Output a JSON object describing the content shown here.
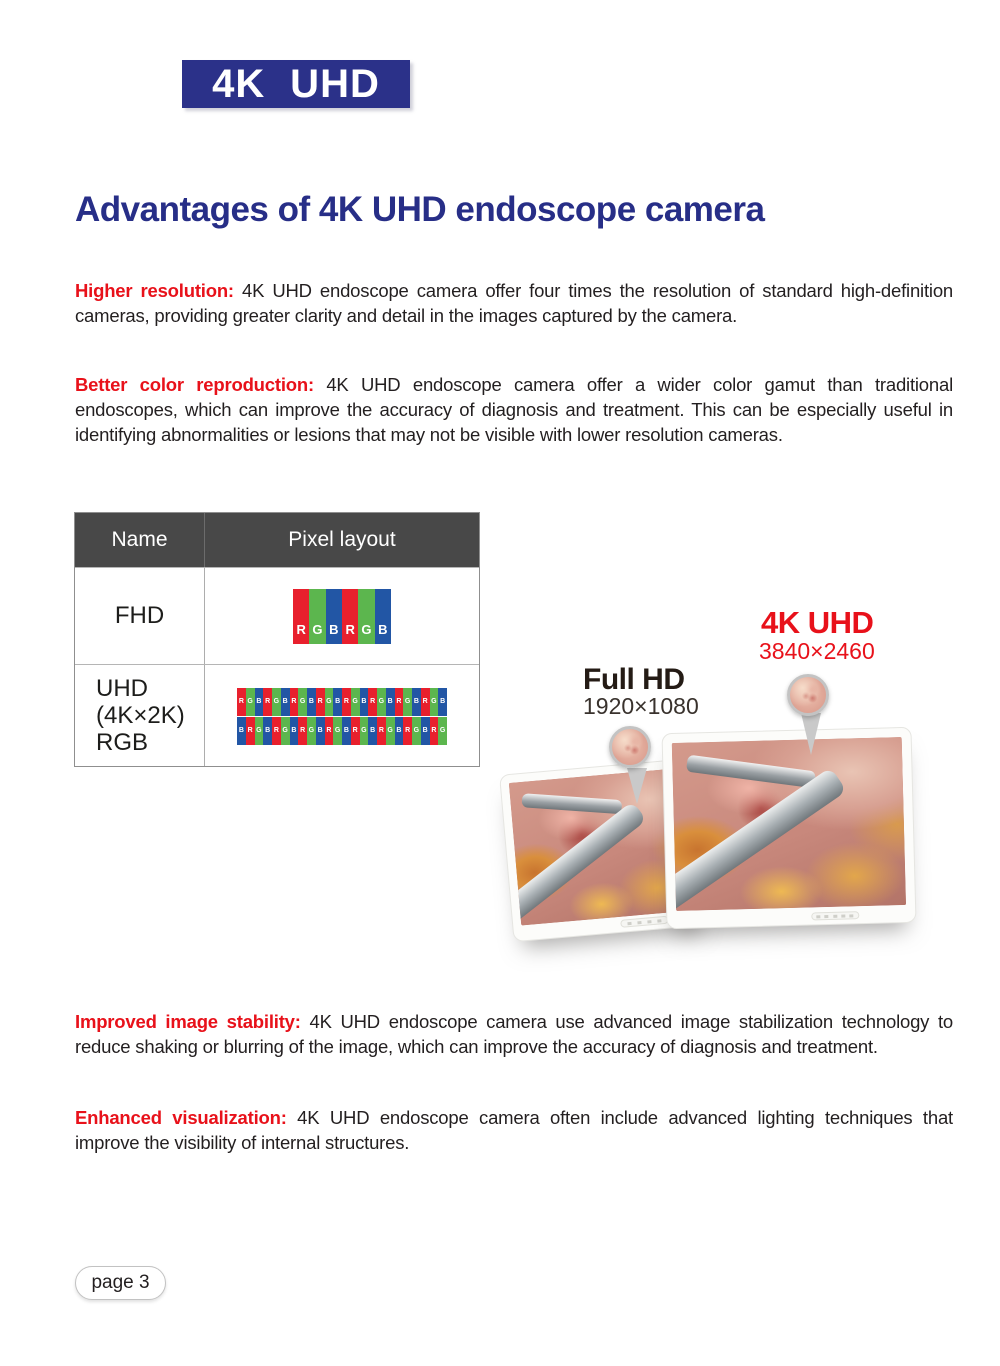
{
  "logo": {
    "text": "4K UHD",
    "bg_color": "#2b3189"
  },
  "heading": {
    "text": "Advantages of 4K UHD endoscope camera",
    "color": "#272e87"
  },
  "paragraphs": [
    {
      "lead": "Higher resolution:",
      "body": "4K UHD endoscope camera offer four times the resolution of standard high-definition cameras, providing greater clarity and detail in the images captured by the camera."
    },
    {
      "lead": "Better color reproduction:",
      "body": "4K UHD endoscope camera offer a wider color gamut than traditional endoscopes, which can improve the accuracy of diagnosis and treatment. This can be especially useful in identifying abnormalities or lesions that may not be visible with lower resolution cameras."
    },
    {
      "lead": "Improved image stability:",
      "body": "4K UHD endoscope camera use advanced image stabilization technology to reduce shaking or blurring of the image, which can improve the accuracy of diagnosis and treatment."
    },
    {
      "lead": "Enhanced visualization:",
      "body": "4K UHD endoscope camera often include advanced lighting techniques that improve the visibility of internal structures."
    }
  ],
  "table": {
    "headers": [
      "Name",
      "Pixel layout"
    ],
    "header_bg": "#484848",
    "pixel_colors": {
      "R": "#e8202d",
      "G": "#5cb64e",
      "B": "#2256a5"
    },
    "rows": [
      {
        "name_lines": [
          "FHD"
        ],
        "patterns": [
          "RGBRGB"
        ]
      },
      {
        "name_lines": [
          "UHD",
          "(4K×2K)",
          "RGB"
        ],
        "patterns": [
          "RGBRGBRGBRGBRGBRGBRGBRGB",
          "BRGBRGBRGBRGBRGBRGBRGBRG"
        ]
      }
    ]
  },
  "monitors": {
    "fhd": {
      "label": "Full HD",
      "resolution": "1920×1080"
    },
    "uhd": {
      "label": "4K UHD",
      "resolution": "3840×2460",
      "label_color": "#e8111a"
    }
  },
  "footer": {
    "page_label": "page 3"
  },
  "colors": {
    "accent_blue": "#2b3189",
    "accent_red": "#e8111a",
    "body_text": "#231f20"
  }
}
